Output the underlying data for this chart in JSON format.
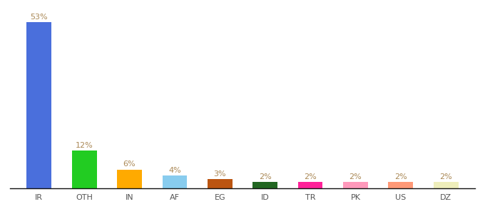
{
  "categories": [
    "IR",
    "OTH",
    "IN",
    "AF",
    "EG",
    "ID",
    "TR",
    "PK",
    "US",
    "DZ"
  ],
  "values": [
    53,
    12,
    6,
    4,
    3,
    2,
    2,
    2,
    2,
    2
  ],
  "bar_colors": [
    "#4a6fdc",
    "#22cc22",
    "#ffaa00",
    "#88ccee",
    "#bb5511",
    "#226622",
    "#ff2299",
    "#ff99bb",
    "#ff9977",
    "#eeeebb"
  ],
  "labels": [
    "53%",
    "12%",
    "6%",
    "4%",
    "3%",
    "2%",
    "2%",
    "2%",
    "2%",
    "2%"
  ],
  "label_color": "#aa8855",
  "ylim": [
    0,
    58
  ],
  "background_color": "#ffffff",
  "bar_width": 0.55,
  "label_fontsize": 8,
  "tick_fontsize": 8,
  "tick_color": "#555555"
}
